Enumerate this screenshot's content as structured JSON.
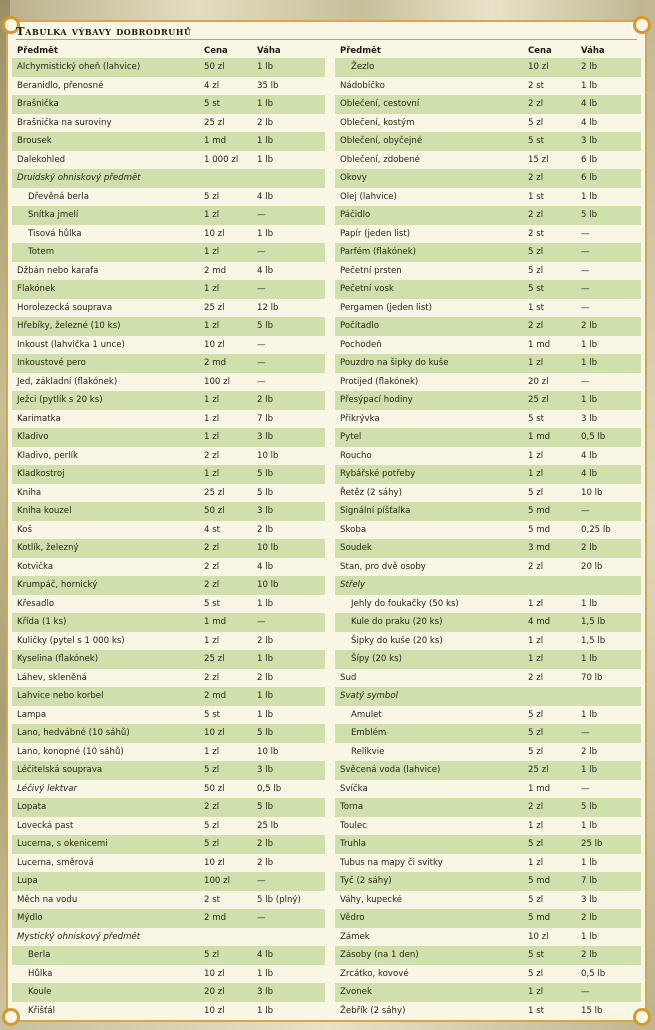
{
  "title": "Tabulka výbavy dobrodruhů",
  "headers": {
    "item": "Předmět",
    "cost": "Cena",
    "weight": "Váha"
  },
  "left": [
    {
      "name": "Alchymistický oheň (lahvice)",
      "cost": "50 zl",
      "weight": "1 lb",
      "alt": true
    },
    {
      "name": "Beranidlo, přenosné",
      "cost": "4 zl",
      "weight": "35 lb",
      "alt": false
    },
    {
      "name": "Brašnička",
      "cost": "5 st",
      "weight": "1 lb",
      "alt": true
    },
    {
      "name": "Brašnička na suroviny",
      "cost": "25 zl",
      "weight": "2 lb",
      "alt": false
    },
    {
      "name": "Brousek",
      "cost": "1 md",
      "weight": "1 lb",
      "alt": true
    },
    {
      "name": "Dalekohled",
      "cost": "1 000 zl",
      "weight": "1 lb",
      "alt": false
    },
    {
      "name": "Druidský ohniskový předmět",
      "cost": "",
      "weight": "",
      "alt": true,
      "cat": true
    },
    {
      "name": "Dřevěná berla",
      "cost": "5 zl",
      "weight": "4 lb",
      "alt": false,
      "sub": true
    },
    {
      "name": "Snítka jmelí",
      "cost": "1 zl",
      "weight": "—",
      "alt": true,
      "sub": true
    },
    {
      "name": "Tisová hůlka",
      "cost": "10 zl",
      "weight": "1 lb",
      "alt": false,
      "sub": true
    },
    {
      "name": "Totem",
      "cost": "1 zl",
      "weight": "—",
      "alt": true,
      "sub": true
    },
    {
      "name": "Džbán nebo karafa",
      "cost": "2 md",
      "weight": "4 lb",
      "alt": false
    },
    {
      "name": "Flakónek",
      "cost": "1 zl",
      "weight": "—",
      "alt": true
    },
    {
      "name": "Horolezecká souprava",
      "cost": "25 zl",
      "weight": "12 lb",
      "alt": false
    },
    {
      "name": "Hřebíky, železné (10 ks)",
      "cost": "1 zl",
      "weight": "5 lb",
      "alt": true
    },
    {
      "name": "Inkoust (lahvička 1 unce)",
      "cost": "10 zl",
      "weight": "—",
      "alt": false
    },
    {
      "name": "Inkoustové pero",
      "cost": "2 md",
      "weight": "—",
      "alt": true
    },
    {
      "name": "Jed, základní (flakónek)",
      "cost": "100 zl",
      "weight": "—",
      "alt": false
    },
    {
      "name": "Ježci (pytlík s 20 ks)",
      "cost": "1 zl",
      "weight": "2 lb",
      "alt": true
    },
    {
      "name": "Karimatka",
      "cost": "1 zl",
      "weight": "7 lb",
      "alt": false
    },
    {
      "name": "Kladivo",
      "cost": "1 zl",
      "weight": "3 lb",
      "alt": true
    },
    {
      "name": "Kladivo, perlík",
      "cost": "2 zl",
      "weight": "10 lb",
      "alt": false
    },
    {
      "name": "Kladkostroj",
      "cost": "1 zl",
      "weight": "5 lb",
      "alt": true
    },
    {
      "name": "Kniha",
      "cost": "25 zl",
      "weight": "5 lb",
      "alt": false
    },
    {
      "name": "Kniha kouzel",
      "cost": "50 zl",
      "weight": "3 lb",
      "alt": true
    },
    {
      "name": "Koš",
      "cost": "4 st",
      "weight": "2 lb",
      "alt": false
    },
    {
      "name": "Kotlík, železný",
      "cost": "2 zl",
      "weight": "10 lb",
      "alt": true
    },
    {
      "name": "Kotvička",
      "cost": "2 zl",
      "weight": "4 lb",
      "alt": false
    },
    {
      "name": "Krumpáč, hornický",
      "cost": "2 zl",
      "weight": "10 lb",
      "alt": true
    },
    {
      "name": "Křesadlo",
      "cost": "5 st",
      "weight": "1 lb",
      "alt": false
    },
    {
      "name": "Křída (1 ks)",
      "cost": "1 md",
      "weight": "—",
      "alt": true
    },
    {
      "name": "Kuličky (pytel s 1 000 ks)",
      "cost": "1 zl",
      "weight": "2 lb",
      "alt": false
    },
    {
      "name": "Kyselina (flakónek)",
      "cost": "25 zl",
      "weight": "1 lb",
      "alt": true
    },
    {
      "name": "Láhev, skleněná",
      "cost": "2 zl",
      "weight": "2 lb",
      "alt": false
    },
    {
      "name": "Lahvice nebo korbel",
      "cost": "2 md",
      "weight": "1 lb",
      "alt": true
    },
    {
      "name": "Lampa",
      "cost": "5 st",
      "weight": "1 lb",
      "alt": false
    },
    {
      "name": "Lano, hedvábné (10 sáhů)",
      "cost": "10 zl",
      "weight": "5 lb",
      "alt": true
    },
    {
      "name": "Lano, konopné (10 sáhů)",
      "cost": "1 zl",
      "weight": "10 lb",
      "alt": false
    },
    {
      "name": "Léčitelská souprava",
      "cost": "5 zl",
      "weight": "3 lb",
      "alt": true
    },
    {
      "name": "Léčivý lektvar",
      "cost": "50 zl",
      "weight": "0,5 lb",
      "alt": false,
      "cat": true
    },
    {
      "name": "Lopata",
      "cost": "2 zl",
      "weight": "5 lb",
      "alt": true
    },
    {
      "name": "Lovecká past",
      "cost": "5 zl",
      "weight": "25 lb",
      "alt": false
    },
    {
      "name": "Lucerna, s okenicemi",
      "cost": "5 zl",
      "weight": "2 lb",
      "alt": true
    },
    {
      "name": "Lucerna, směrová",
      "cost": "10 zl",
      "weight": "2 lb",
      "alt": false
    },
    {
      "name": "Lupa",
      "cost": "100 zl",
      "weight": "—",
      "alt": true
    },
    {
      "name": "Měch na vodu",
      "cost": "2 st",
      "weight": "5 lb (plný)",
      "alt": false
    },
    {
      "name": "Mýdlo",
      "cost": "2 md",
      "weight": "—",
      "alt": true
    },
    {
      "name": "Mystický ohniskový předmět",
      "cost": "",
      "weight": "",
      "alt": false,
      "cat": true
    },
    {
      "name": "Berla",
      "cost": "5 zl",
      "weight": "4 lb",
      "alt": true,
      "sub": true
    },
    {
      "name": "Hůlka",
      "cost": "10 zl",
      "weight": "1 lb",
      "alt": false,
      "sub": true
    },
    {
      "name": "Koule",
      "cost": "20 zl",
      "weight": "3 lb",
      "alt": true,
      "sub": true
    },
    {
      "name": "Křišťál",
      "cost": "10 zl",
      "weight": "1 lb",
      "alt": false,
      "sub": true
    }
  ],
  "right": [
    {
      "name": "Žezlo",
      "cost": "10 zl",
      "weight": "2 lb",
      "alt": true,
      "sub": true
    },
    {
      "name": "Nádobíčko",
      "cost": "2 st",
      "weight": "1 lb",
      "alt": false
    },
    {
      "name": "Oblečení, cestovní",
      "cost": "2 zl",
      "weight": "4 lb",
      "alt": true
    },
    {
      "name": "Oblečení, kostým",
      "cost": "5 zl",
      "weight": "4 lb",
      "alt": false
    },
    {
      "name": "Oblečení, obyčejné",
      "cost": "5 st",
      "weight": "3 lb",
      "alt": true
    },
    {
      "name": "Oblečení, zdobené",
      "cost": "15 zl",
      "weight": "6 lb",
      "alt": false
    },
    {
      "name": "Okovy",
      "cost": "2 zl",
      "weight": "6 lb",
      "alt": true
    },
    {
      "name": "Olej (lahvice)",
      "cost": "1 st",
      "weight": "1 lb",
      "alt": false
    },
    {
      "name": "Páčidlo",
      "cost": "2 zl",
      "weight": "5 lb",
      "alt": true
    },
    {
      "name": "Papír (jeden list)",
      "cost": "2 st",
      "weight": "—",
      "alt": false
    },
    {
      "name": "Parfém (flakónek)",
      "cost": "5 zl",
      "weight": "—",
      "alt": true
    },
    {
      "name": "Pečetní prsten",
      "cost": "5 zl",
      "weight": "—",
      "alt": false
    },
    {
      "name": "Pečetní vosk",
      "cost": "5 st",
      "weight": "—",
      "alt": true
    },
    {
      "name": "Pergamen (jeden list)",
      "cost": "1 st",
      "weight": "—",
      "alt": false
    },
    {
      "name": "Počítadlo",
      "cost": "2 zl",
      "weight": "2 lb",
      "alt": true
    },
    {
      "name": "Pochodeň",
      "cost": "1 md",
      "weight": "1 lb",
      "alt": false
    },
    {
      "name": "Pouzdro na šipky do kuše",
      "cost": "1 zl",
      "weight": "1 lb",
      "alt": true
    },
    {
      "name": "Protijed (flakónek)",
      "cost": "20 zl",
      "weight": "—",
      "alt": false
    },
    {
      "name": "Přesýpací hodiny",
      "cost": "25 zl",
      "weight": "1 lb",
      "alt": true
    },
    {
      "name": "Přikrývka",
      "cost": "5 st",
      "weight": "3 lb",
      "alt": false
    },
    {
      "name": "Pytel",
      "cost": "1 md",
      "weight": "0,5 lb",
      "alt": true
    },
    {
      "name": "Roucho",
      "cost": "1 zl",
      "weight": "4 lb",
      "alt": false
    },
    {
      "name": "Rybářské potřeby",
      "cost": "1 zl",
      "weight": "4 lb",
      "alt": true
    },
    {
      "name": "Řetěz (2 sáhy)",
      "cost": "5 zl",
      "weight": "10 lb",
      "alt": false
    },
    {
      "name": "Signální píšťalka",
      "cost": "5 md",
      "weight": "—",
      "alt": true
    },
    {
      "name": "Skoba",
      "cost": "5 md",
      "weight": "0,25 lb",
      "alt": false
    },
    {
      "name": "Soudek",
      "cost": "3 md",
      "weight": "2 lb",
      "alt": true
    },
    {
      "name": "Stan, pro dvě osoby",
      "cost": "2 zl",
      "weight": "20 lb",
      "alt": false
    },
    {
      "name": "Střely",
      "cost": "",
      "weight": "",
      "alt": true,
      "cat": true
    },
    {
      "name": "Jehly do foukačky (50 ks)",
      "cost": "1 zl",
      "weight": "1 lb",
      "alt": false,
      "sub": true
    },
    {
      "name": "Kule do praku (20 ks)",
      "cost": "4 md",
      "weight": "1,5 lb",
      "alt": true,
      "sub": true
    },
    {
      "name": "Šipky do kuše (20 ks)",
      "cost": "1 zl",
      "weight": "1,5 lb",
      "alt": false,
      "sub": true
    },
    {
      "name": "Šípy (20 ks)",
      "cost": "1 zl",
      "weight": "1 lb",
      "alt": true,
      "sub": true
    },
    {
      "name": "Sud",
      "cost": "2 zl",
      "weight": "70 lb",
      "alt": false
    },
    {
      "name": "Svatý symbol",
      "cost": "",
      "weight": "",
      "alt": true,
      "cat": true
    },
    {
      "name": "Amulet",
      "cost": "5 zl",
      "weight": "1 lb",
      "alt": false,
      "sub": true
    },
    {
      "name": "Emblém",
      "cost": "5 zl",
      "weight": "—",
      "alt": true,
      "sub": true
    },
    {
      "name": "Relikvie",
      "cost": "5 zl",
      "weight": "2 lb",
      "alt": false,
      "sub": true
    },
    {
      "name": "Svěcená voda (lahvice)",
      "cost": "25 zl",
      "weight": "1 lb",
      "alt": true
    },
    {
      "name": "Svíčka",
      "cost": "1 md",
      "weight": "—",
      "alt": false
    },
    {
      "name": "Torna",
      "cost": "2 zl",
      "weight": "5 lb",
      "alt": true
    },
    {
      "name": "Toulec",
      "cost": "1 zl",
      "weight": "1 lb",
      "alt": false
    },
    {
      "name": "Truhla",
      "cost": "5 zl",
      "weight": "25 lb",
      "alt": true
    },
    {
      "name": "Tubus na mapy či svitky",
      "cost": "1 zl",
      "weight": "1 lb",
      "alt": false
    },
    {
      "name": "Tyč (2 sáhy)",
      "cost": "5 md",
      "weight": "7 lb",
      "alt": true
    },
    {
      "name": "Váhy, kupecké",
      "cost": "5 zl",
      "weight": "3 lb",
      "alt": false
    },
    {
      "name": "Vědro",
      "cost": "5 md",
      "weight": "2 lb",
      "alt": true
    },
    {
      "name": "Zámek",
      "cost": "10 zl",
      "weight": "1 lb",
      "alt": false
    },
    {
      "name": "Zásoby (na 1 den)",
      "cost": "5 st",
      "weight": "2 lb",
      "alt": true
    },
    {
      "name": "Zrcátko, kovové",
      "cost": "5 zl",
      "weight": "0,5 lb",
      "alt": false
    },
    {
      "name": "Zvonek",
      "cost": "1 zl",
      "weight": "—",
      "alt": true
    },
    {
      "name": "Žebřík (2 sáhy)",
      "cost": "1 st",
      "weight": "15 lb",
      "alt": false
    }
  ]
}
